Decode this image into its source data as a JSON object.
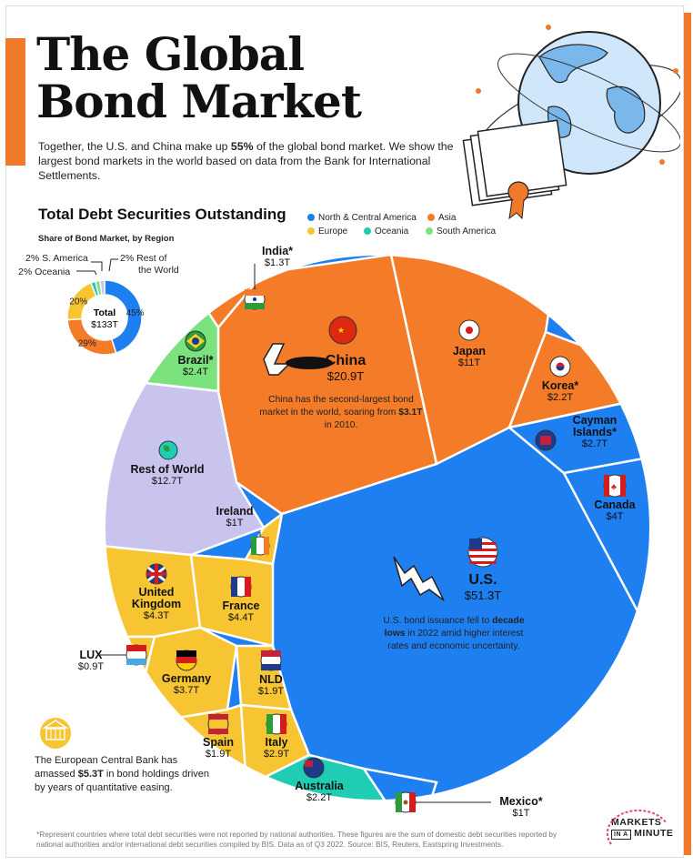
{
  "header": {
    "title_line1": "The Global",
    "title_line2": "Bond Market",
    "subtitle_pre": "Together, the U.S. and China make up ",
    "subtitle_bold": "55%",
    "subtitle_post": " of the global bond market. We show the largest bond markets in the world based on data from the Bank for International Settlements."
  },
  "section_title": "Total Debt Securities Outstanding",
  "legend": [
    {
      "label": "North & Central America",
      "color": "#1e7ff0"
    },
    {
      "label": "Asia",
      "color": "#f47b28"
    },
    {
      "label": "Europe",
      "color": "#f7c531"
    },
    {
      "label": "Oceania",
      "color": "#1fcdb4"
    },
    {
      "label": "South America",
      "color": "#7ce27e"
    }
  ],
  "share_title": "Share of Bond Market, by Region",
  "donut": {
    "center_label": "Total",
    "center_value": "$133T",
    "segments": [
      {
        "label": "45%",
        "value": 45,
        "color": "#1e7ff0"
      },
      {
        "label": "29%",
        "value": 29,
        "color": "#f47b28"
      },
      {
        "label": "20%",
        "value": 20,
        "color": "#f7c531"
      },
      {
        "label": "2% Oceania",
        "value": 2,
        "color": "#1fcdb4"
      },
      {
        "label": "2% S. America",
        "value": 2,
        "color": "#7ce27e"
      },
      {
        "label": "2% Rest of the World",
        "value": 2,
        "color": "#c9c4ee"
      }
    ],
    "outer_labels": {
      "s_america": "2% S. America",
      "oceania": "2% Oceania",
      "rest1": "2% Rest of",
      "rest2": "the World"
    }
  },
  "chart_data": {
    "type": "voronoi treemap",
    "title": "Total Debt Securities Outstanding",
    "unit": "USD trillions",
    "series": [
      {
        "name": "U.S.",
        "value": 51.3,
        "region": "North & Central America"
      },
      {
        "name": "China",
        "value": 20.9,
        "region": "Asia"
      },
      {
        "name": "Rest of World",
        "value": 12.7,
        "region": "Rest of World"
      },
      {
        "name": "Japan",
        "value": 11,
        "region": "Asia"
      },
      {
        "name": "France",
        "value": 4.4,
        "region": "Europe"
      },
      {
        "name": "United Kingdom",
        "value": 4.3,
        "region": "Europe"
      },
      {
        "name": "Canada",
        "value": 4,
        "region": "North & Central America"
      },
      {
        "name": "Germany",
        "value": 3.7,
        "region": "Europe"
      },
      {
        "name": "Italy",
        "value": 2.9,
        "region": "Europe"
      },
      {
        "name": "Cayman Islands*",
        "value": 2.7,
        "region": "North & Central America"
      },
      {
        "name": "Brazil*",
        "value": 2.4,
        "region": "South America"
      },
      {
        "name": "Korea*",
        "value": 2.2,
        "region": "Asia"
      },
      {
        "name": "Australia",
        "value": 2.2,
        "region": "Oceania"
      },
      {
        "name": "NLD",
        "value": 1.9,
        "region": "Europe"
      },
      {
        "name": "Spain",
        "value": 1.9,
        "region": "Europe"
      },
      {
        "name": "India*",
        "value": 1.3,
        "region": "Asia"
      },
      {
        "name": "Ireland",
        "value": 1,
        "region": "Europe"
      },
      {
        "name": "Mexico*",
        "value": 1,
        "region": "North & Central America"
      },
      {
        "name": "LUX",
        "value": 0.9,
        "region": "Europe"
      }
    ]
  },
  "labels": {
    "us": {
      "name": "U.S.",
      "value": "$51.3T"
    },
    "china": {
      "name": "China",
      "value": "$20.9T"
    },
    "row": {
      "name": "Rest of World",
      "value": "$12.7T"
    },
    "japan": {
      "name": "Japan",
      "value": "$11T"
    },
    "france": {
      "name": "France",
      "value": "$4.4T"
    },
    "uk1": "United",
    "uk2": "Kingdom",
    "uk_value": "$4.3T",
    "canada": {
      "name": "Canada",
      "value": "$4T"
    },
    "germany": {
      "name": "Germany",
      "value": "$3.7T"
    },
    "italy": {
      "name": "Italy",
      "value": "$2.9T"
    },
    "cayman1": "Cayman",
    "cayman2": "Islands*",
    "cayman_value": "$2.7T",
    "brazil": {
      "name": "Brazil*",
      "value": "$2.4T"
    },
    "korea": {
      "name": "Korea*",
      "value": "$2.2T"
    },
    "australia": {
      "name": "Australia",
      "value": "$2.2T"
    },
    "nld": {
      "name": "NLD",
      "value": "$1.9T"
    },
    "spain": {
      "name": "Spain",
      "value": "$1.9T"
    },
    "india": {
      "name": "India*",
      "value": "$1.3T"
    },
    "ireland": {
      "name": "Ireland",
      "value": "$1T"
    },
    "mexico": {
      "name": "Mexico*",
      "value": "$1T"
    },
    "lux": {
      "name": "LUX",
      "value": "$0.9T"
    }
  },
  "notes": {
    "china_pre": "China has the second-largest bond market in the world, soaring from ",
    "china_bold": "$3.1T",
    "china_post": " in 2010.",
    "us_pre": "U.S. bond issuance fell to ",
    "us_bold": "decade lows",
    "us_post": " in 2022 amid higher interest rates and economic uncertainty.",
    "ecb_pre": "The European Central Bank has amassed ",
    "ecb_bold": "$5.3T",
    "ecb_post": " in bond holdings driven by years of quantitative easing."
  },
  "footnote": "*Represent countries where total debt securities were not reported by national authorities. These figures are the sum of domestic debt securities reported by national authorities and/or international debt securities compiled by BIS. Data as of Q3 2022. Source: BIS, Reuters, Eastspring Investments.",
  "brand": {
    "line1": "MARKETS",
    "line2": "IN A",
    "line3": "MINUTE"
  },
  "colors": {
    "na": "#1e7ff0",
    "asia": "#f47b28",
    "europe": "#f7c531",
    "oceania": "#1fcdb4",
    "samerica": "#7ce27e",
    "row": "#c9c4ee",
    "accent": "#f07a2a"
  }
}
